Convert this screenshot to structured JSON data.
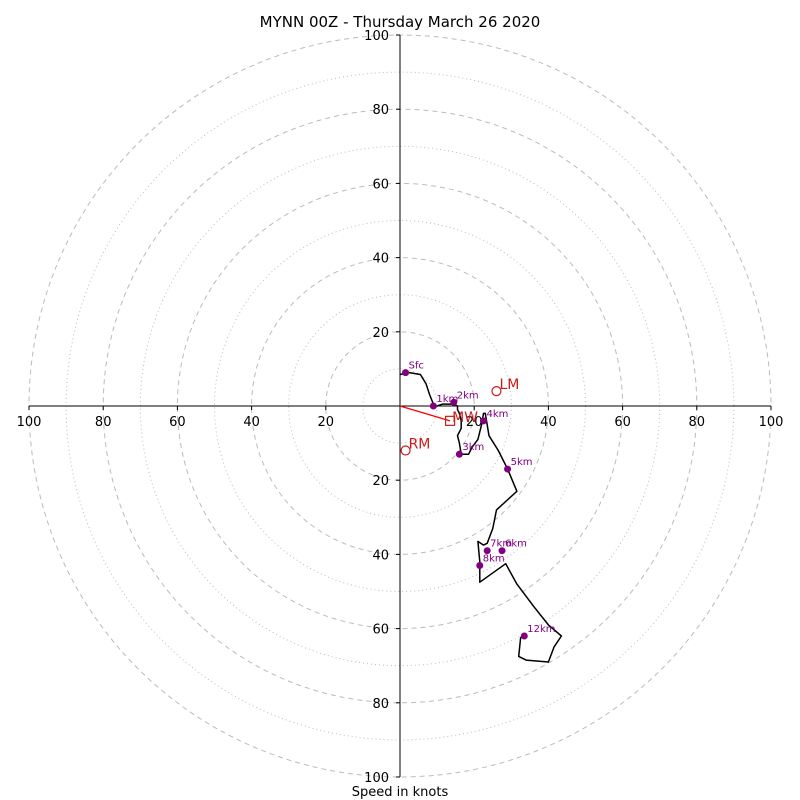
{
  "chart_data": {
    "type": "hodograph",
    "title": "MYNN 00Z - Thursday March 26 2020",
    "xlabel": "Speed in knots",
    "ring_ticks": [
      20,
      40,
      60,
      80,
      100
    ],
    "axis_tick_labels": {
      "right": [
        "20",
        "40",
        "60",
        "80",
        "100"
      ],
      "left": [
        "20",
        "40",
        "60",
        "80",
        "100"
      ],
      "top": [
        "20",
        "40",
        "60",
        "80",
        "100"
      ],
      "bottom": [
        "20",
        "40",
        "60",
        "80",
        "100"
      ]
    },
    "max_speed": 100,
    "grid": true,
    "colors": {
      "trace": "#000000",
      "height_marker": "#800080",
      "storm_motion": "#cc1b1b",
      "mean_wind_vector": "#ff0000",
      "grid": "#bbbbbb"
    },
    "hodograph_trace_uv": [
      [
        0,
        8.5
      ],
      [
        2.5,
        9
      ],
      [
        5.5,
        8.5
      ],
      [
        7,
        6
      ],
      [
        8,
        3
      ],
      [
        9,
        0.5
      ],
      [
        9.5,
        0
      ],
      [
        10,
        0
      ],
      [
        11.5,
        0.5
      ],
      [
        13,
        0.5
      ],
      [
        14.5,
        0.5
      ],
      [
        15.5,
        0
      ],
      [
        15.5,
        -1
      ],
      [
        16,
        -2
      ],
      [
        16.5,
        -4
      ],
      [
        16.5,
        -6
      ],
      [
        15.5,
        -8
      ],
      [
        16,
        -10
      ],
      [
        16.5,
        -13
      ],
      [
        18.5,
        -13
      ],
      [
        19.5,
        -11
      ],
      [
        21,
        -9
      ],
      [
        22,
        -5
      ],
      [
        22.5,
        -2
      ],
      [
        23,
        -2
      ],
      [
        24,
        -8
      ],
      [
        26.5,
        -12
      ],
      [
        29,
        -17
      ],
      [
        31.5,
        -23
      ],
      [
        26,
        -28
      ],
      [
        25,
        -33
      ],
      [
        23.5,
        -37
      ],
      [
        22.5,
        -37.5
      ],
      [
        21,
        -36.5
      ],
      [
        21.5,
        -42
      ],
      [
        21.5,
        -47.5
      ],
      [
        28.5,
        -42.5
      ],
      [
        31.5,
        -48
      ],
      [
        36,
        -54
      ],
      [
        40,
        -59
      ],
      [
        43.5,
        -62
      ],
      [
        41.5,
        -65
      ],
      [
        40,
        -69
      ],
      [
        34,
        -68.5
      ],
      [
        32,
        -67.5
      ],
      [
        32.5,
        -62.5
      ],
      [
        33,
        -62
      ]
    ],
    "height_markers": [
      {
        "label": "Sfc",
        "u": 1.5,
        "v": 9
      },
      {
        "label": "1km",
        "u": 9,
        "v": 0
      },
      {
        "label": "2km",
        "u": 14.5,
        "v": 1
      },
      {
        "label": "3km",
        "u": 16,
        "v": -13
      },
      {
        "label": "4km",
        "u": 22.5,
        "v": -4
      },
      {
        "label": "5km",
        "u": 29,
        "v": -17
      },
      {
        "label": "7km",
        "u": 23.5,
        "v": -39
      },
      {
        "label": "6km",
        "u": 27.5,
        "v": -39
      },
      {
        "label": "8km",
        "u": 21.5,
        "v": -43
      },
      {
        "label": "12km",
        "u": 33.5,
        "v": -62
      }
    ],
    "storm_motion": [
      {
        "label": "LM",
        "u": 26,
        "v": 4
      },
      {
        "label": "RM",
        "u": 1.5,
        "v": -12
      }
    ],
    "mean_wind": {
      "label": "MW",
      "u": 13.5,
      "v": -4
    },
    "mean_wind_vector": {
      "u": 13.5,
      "v": -4
    }
  }
}
